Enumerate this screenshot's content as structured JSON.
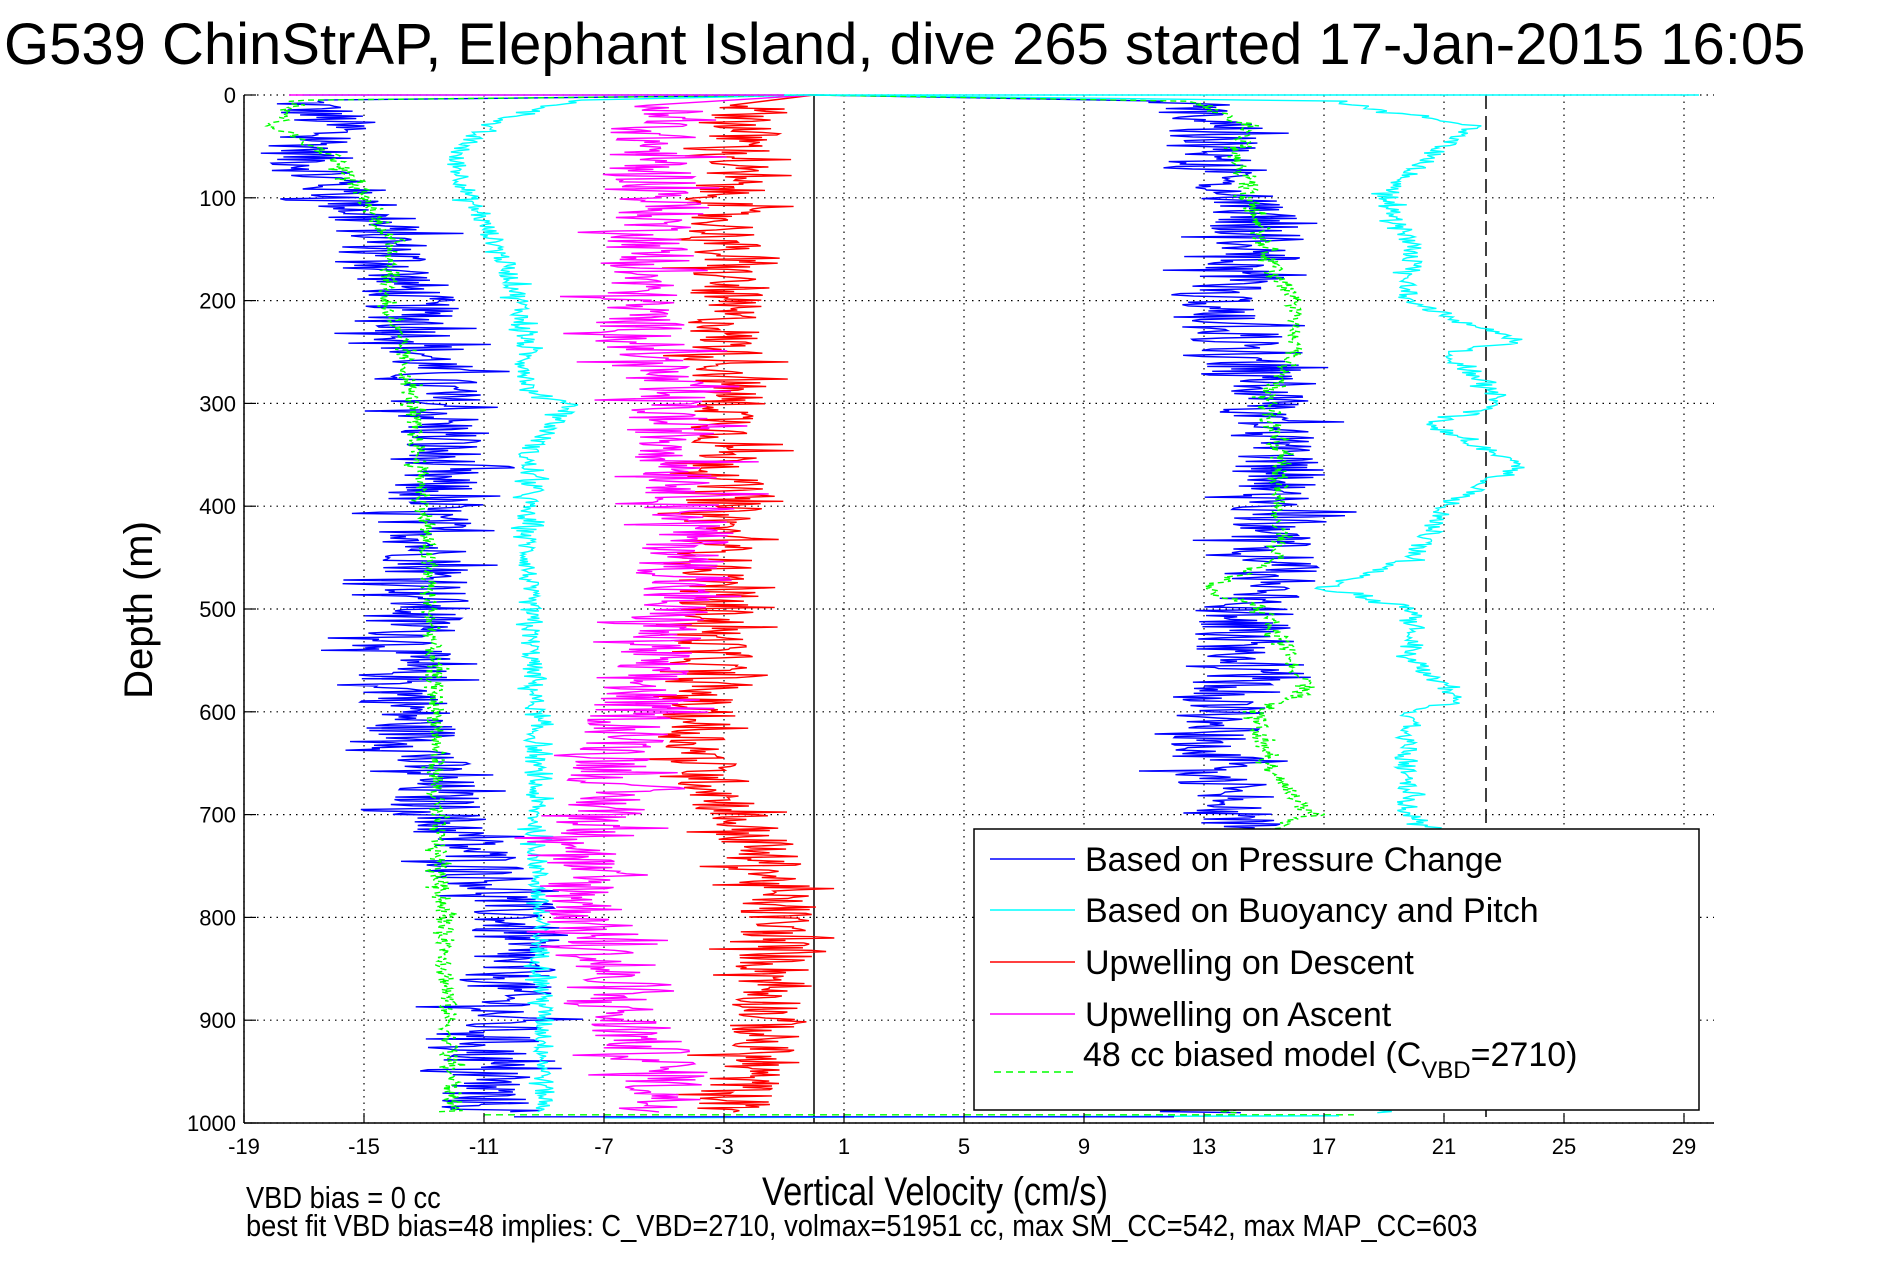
{
  "chart_data": {
    "type": "line",
    "title": "G539 ChinStrAP, Elephant Island, dive 265 started 17-Jan-2015 16:05",
    "xlabel": "Vertical Velocity (cm/s)",
    "ylabel": "Depth (m)",
    "xlim": [
      -19,
      30
    ],
    "ylim": [
      0,
      1000
    ],
    "y_reversed": true,
    "grid": true,
    "x_ticks": [
      -19,
      -15,
      -11,
      -7,
      -3,
      1,
      5,
      9,
      13,
      17,
      21,
      25,
      29
    ],
    "x_tick_labels": [
      "-19",
      "-15",
      "-11",
      "-7",
      "-3",
      "1",
      "5",
      "9",
      "13",
      "17",
      "21",
      "25",
      "29"
    ],
    "y_ticks": [
      0,
      100,
      200,
      300,
      400,
      500,
      600,
      700,
      800,
      900,
      1000
    ],
    "y_tick_labels": [
      "0",
      "100",
      "200",
      "300",
      "400",
      "500",
      "600",
      "700",
      "800",
      "900",
      "1000"
    ],
    "reference_lines": [
      {
        "name": "zero-velocity",
        "x": 0,
        "style": "solid",
        "color": "#000000"
      },
      {
        "name": "max-velocity-marker",
        "x": 22.4,
        "style": "dashed",
        "color": "#000000"
      }
    ],
    "legend": {
      "position": "bottom-right",
      "entries": [
        {
          "label": "Based on Pressure Change",
          "color": "#0000ff",
          "style": "solid"
        },
        {
          "label": "Based on Buoyancy and Pitch",
          "color": "#00ffff",
          "style": "solid"
        },
        {
          "label": "Upwelling on Descent",
          "color": "#ff0000",
          "style": "solid"
        },
        {
          "label": "Upwelling on Ascent",
          "color": "#ff00ff",
          "style": "solid"
        },
        {
          "label_prefix": "48 cc biased model (C",
          "label_sub": "VBD",
          "label_suffix": "=2710)",
          "color": "#00ff00",
          "style": "dashed"
        }
      ]
    },
    "series": [
      {
        "name": "Based on Pressure Change (descent)",
        "color": "#0000ff",
        "style": "solid",
        "noise": 1.6,
        "depth": [
          5,
          30,
          60,
          100,
          130,
          160,
          200,
          250,
          300,
          350,
          400,
          450,
          500,
          550,
          600,
          650,
          700,
          750,
          800,
          850,
          900,
          950,
          990
        ],
        "velocity": [
          -17,
          -16,
          -17,
          -15.5,
          -14.5,
          -14,
          -13.5,
          -13,
          -12.5,
          -12.5,
          -13,
          -12.8,
          -13,
          -13.8,
          -13.5,
          -13,
          -12.5,
          -11,
          -10,
          -10.2,
          -10.5,
          -11,
          -11
        ]
      },
      {
        "name": "Based on Buoyancy and Pitch (descent)",
        "color": "#00ffff",
        "style": "solid",
        "noise": 0.35,
        "depth": [
          5,
          30,
          60,
          100,
          150,
          200,
          250,
          290,
          300,
          350,
          380,
          400,
          500,
          600,
          700,
          760,
          800,
          900,
          990
        ],
        "velocity": [
          -8,
          -11,
          -12,
          -11.5,
          -10.5,
          -9.8,
          -9.6,
          -9.5,
          -8,
          -9.6,
          -9.4,
          -9.6,
          -9.5,
          -9.3,
          -9.3,
          -9.2,
          -9.2,
          -9.0,
          -9.0
        ]
      },
      {
        "name": "Upwelling on Descent",
        "color": "#ff0000",
        "style": "solid",
        "noise": 1.3,
        "depth": [
          10,
          50,
          100,
          200,
          300,
          400,
          450,
          500,
          550,
          600,
          650,
          700,
          750,
          800,
          850,
          900,
          950,
          990
        ],
        "velocity": [
          -2,
          -2.5,
          -3,
          -3,
          -2.8,
          -3,
          -3.3,
          -3.2,
          -3.5,
          -4,
          -3.8,
          -2.6,
          -1.6,
          -1.2,
          -1.3,
          -1.5,
          -2.2,
          -2.8
        ]
      },
      {
        "name": "Upwelling on Ascent",
        "color": "#ff00ff",
        "style": "solid",
        "noise": 1.5,
        "depth": [
          10,
          50,
          100,
          200,
          250,
          300,
          350,
          400,
          450,
          500,
          550,
          600,
          650,
          700,
          750,
          800,
          850,
          900,
          950,
          990
        ],
        "velocity": [
          -5,
          -5.5,
          -5,
          -6,
          -5.5,
          -5,
          -4.5,
          -4,
          -4.3,
          -4.8,
          -5.5,
          -6,
          -6.6,
          -7,
          -7.8,
          -7.6,
          -7,
          -6.5,
          -5,
          -5
        ]
      },
      {
        "name": "48 cc biased model (descent)",
        "color": "#00ff00",
        "style": "dashed",
        "noise": 0.3,
        "depth": [
          5,
          30,
          60,
          100,
          150,
          200,
          250,
          300,
          350,
          400,
          500,
          600,
          700,
          760,
          800,
          900,
          990
        ],
        "velocity": [
          -17,
          -18,
          -16,
          -15,
          -14,
          -14.3,
          -13.7,
          -13.4,
          -13.2,
          -13,
          -12.8,
          -12.6,
          -12.6,
          -12.5,
          -12.3,
          -12.2,
          -12
        ]
      },
      {
        "name": "Based on Pressure Change (ascent)",
        "color": "#0000ff",
        "style": "solid",
        "noise": 1.6,
        "depth": [
          990,
          950,
          900,
          850,
          800,
          750,
          700,
          650,
          600,
          550,
          500,
          450,
          400,
          350,
          300,
          250,
          200,
          150,
          100,
          60,
          30,
          5
        ],
        "velocity": [
          13,
          14,
          14.5,
          14.5,
          14.5,
          15,
          14,
          13.5,
          13.5,
          14,
          14.5,
          15.5,
          15.5,
          15.5,
          15,
          14.5,
          13,
          15,
          14.5,
          13,
          13.5,
          12
        ]
      },
      {
        "name": "Based on Buoyancy and Pitch (ascent)",
        "color": "#00ffff",
        "style": "solid",
        "noise": 0.35,
        "depth": [
          990,
          950,
          900,
          850,
          800,
          750,
          720,
          700,
          650,
          600,
          590,
          550,
          500,
          480,
          450,
          400,
          360,
          320,
          300,
          250,
          240,
          200,
          150,
          100,
          60,
          30,
          5
        ],
        "velocity": [
          19,
          20,
          20,
          20,
          20,
          19.8,
          21,
          19.8,
          19.7,
          19.8,
          21.5,
          20,
          20,
          17,
          20,
          21,
          23.5,
          20.5,
          23,
          21,
          23.5,
          19.8,
          20,
          19,
          20.5,
          22,
          17
        ]
      },
      {
        "name": "48 cc biased model (ascent)",
        "color": "#00ff00",
        "style": "dashed",
        "noise": 0.3,
        "depth": [
          990,
          950,
          900,
          800,
          720,
          700,
          650,
          600,
          580,
          500,
          480,
          450,
          400,
          350,
          300,
          250,
          200,
          150,
          100,
          60,
          30,
          5
        ],
        "velocity": [
          13.8,
          13.8,
          14,
          14.5,
          14.8,
          16.5,
          15,
          14.8,
          16.5,
          15,
          13,
          15.5,
          15.5,
          15.5,
          15,
          16,
          16,
          15,
          14.5,
          14,
          14.5,
          12.5
        ]
      }
    ]
  },
  "annotations": {
    "vbd_bias": "VBD bias = 0 cc",
    "best_fit": "best fit VBD bias=48 implies: C_VBD=2710, volmax=51951 cc, max SM_CC=542, max MAP_CC=603"
  }
}
